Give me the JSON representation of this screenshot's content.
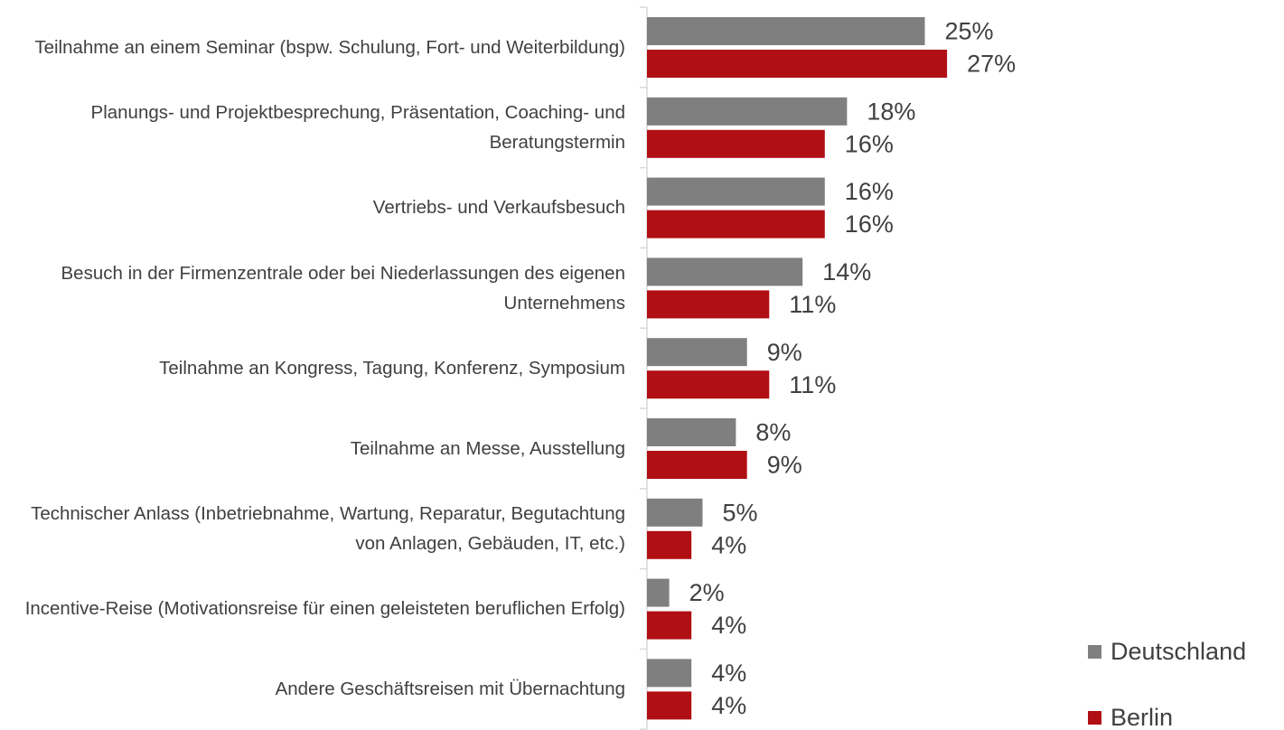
{
  "chart_data": {
    "type": "bar",
    "orientation": "horizontal",
    "categories": [
      "Teilnahme an einem Seminar (bspw. Schulung, Fort- und Weiterbildung)",
      "Planungs- und Projektbesprechung, Präsentation, Coaching- und Beratungstermin",
      "Vertriebs- und Verkaufsbesuch",
      "Besuch in der Firmenzentrale oder bei Niederlassungen des eigenen Unternehmens",
      "Teilnahme an Kongress, Tagung, Konferenz, Symposium",
      "Teilnahme an Messe, Ausstellung",
      "Technischer Anlass (Inbetriebnahme, Wartung, Reparatur, Begutachtung von Anlagen, Gebäuden, IT, etc.)",
      "Incentive-Reise (Motivationsreise für einen geleisteten beruflichen Erfolg)",
      "Andere Geschäftsreisen mit Übernachtung"
    ],
    "series": [
      {
        "name": "Deutschland",
        "color": "#7f7f7f",
        "values": [
          25,
          18,
          16,
          14,
          9,
          8,
          5,
          2,
          4
        ],
        "value_labels": [
          "25%",
          "18%",
          "16%",
          "14%",
          "9%",
          "8%",
          "5%",
          "2%",
          "4%"
        ]
      },
      {
        "name": "Berlin",
        "color": "#b00f14",
        "values": [
          27,
          16,
          16,
          11,
          11,
          9,
          4,
          4,
          4
        ],
        "value_labels": [
          "27%",
          "16%",
          "16%",
          "11%",
          "11%",
          "9%",
          "4%",
          "4%",
          "4%"
        ]
      }
    ],
    "legend": "bottom-right"
  }
}
